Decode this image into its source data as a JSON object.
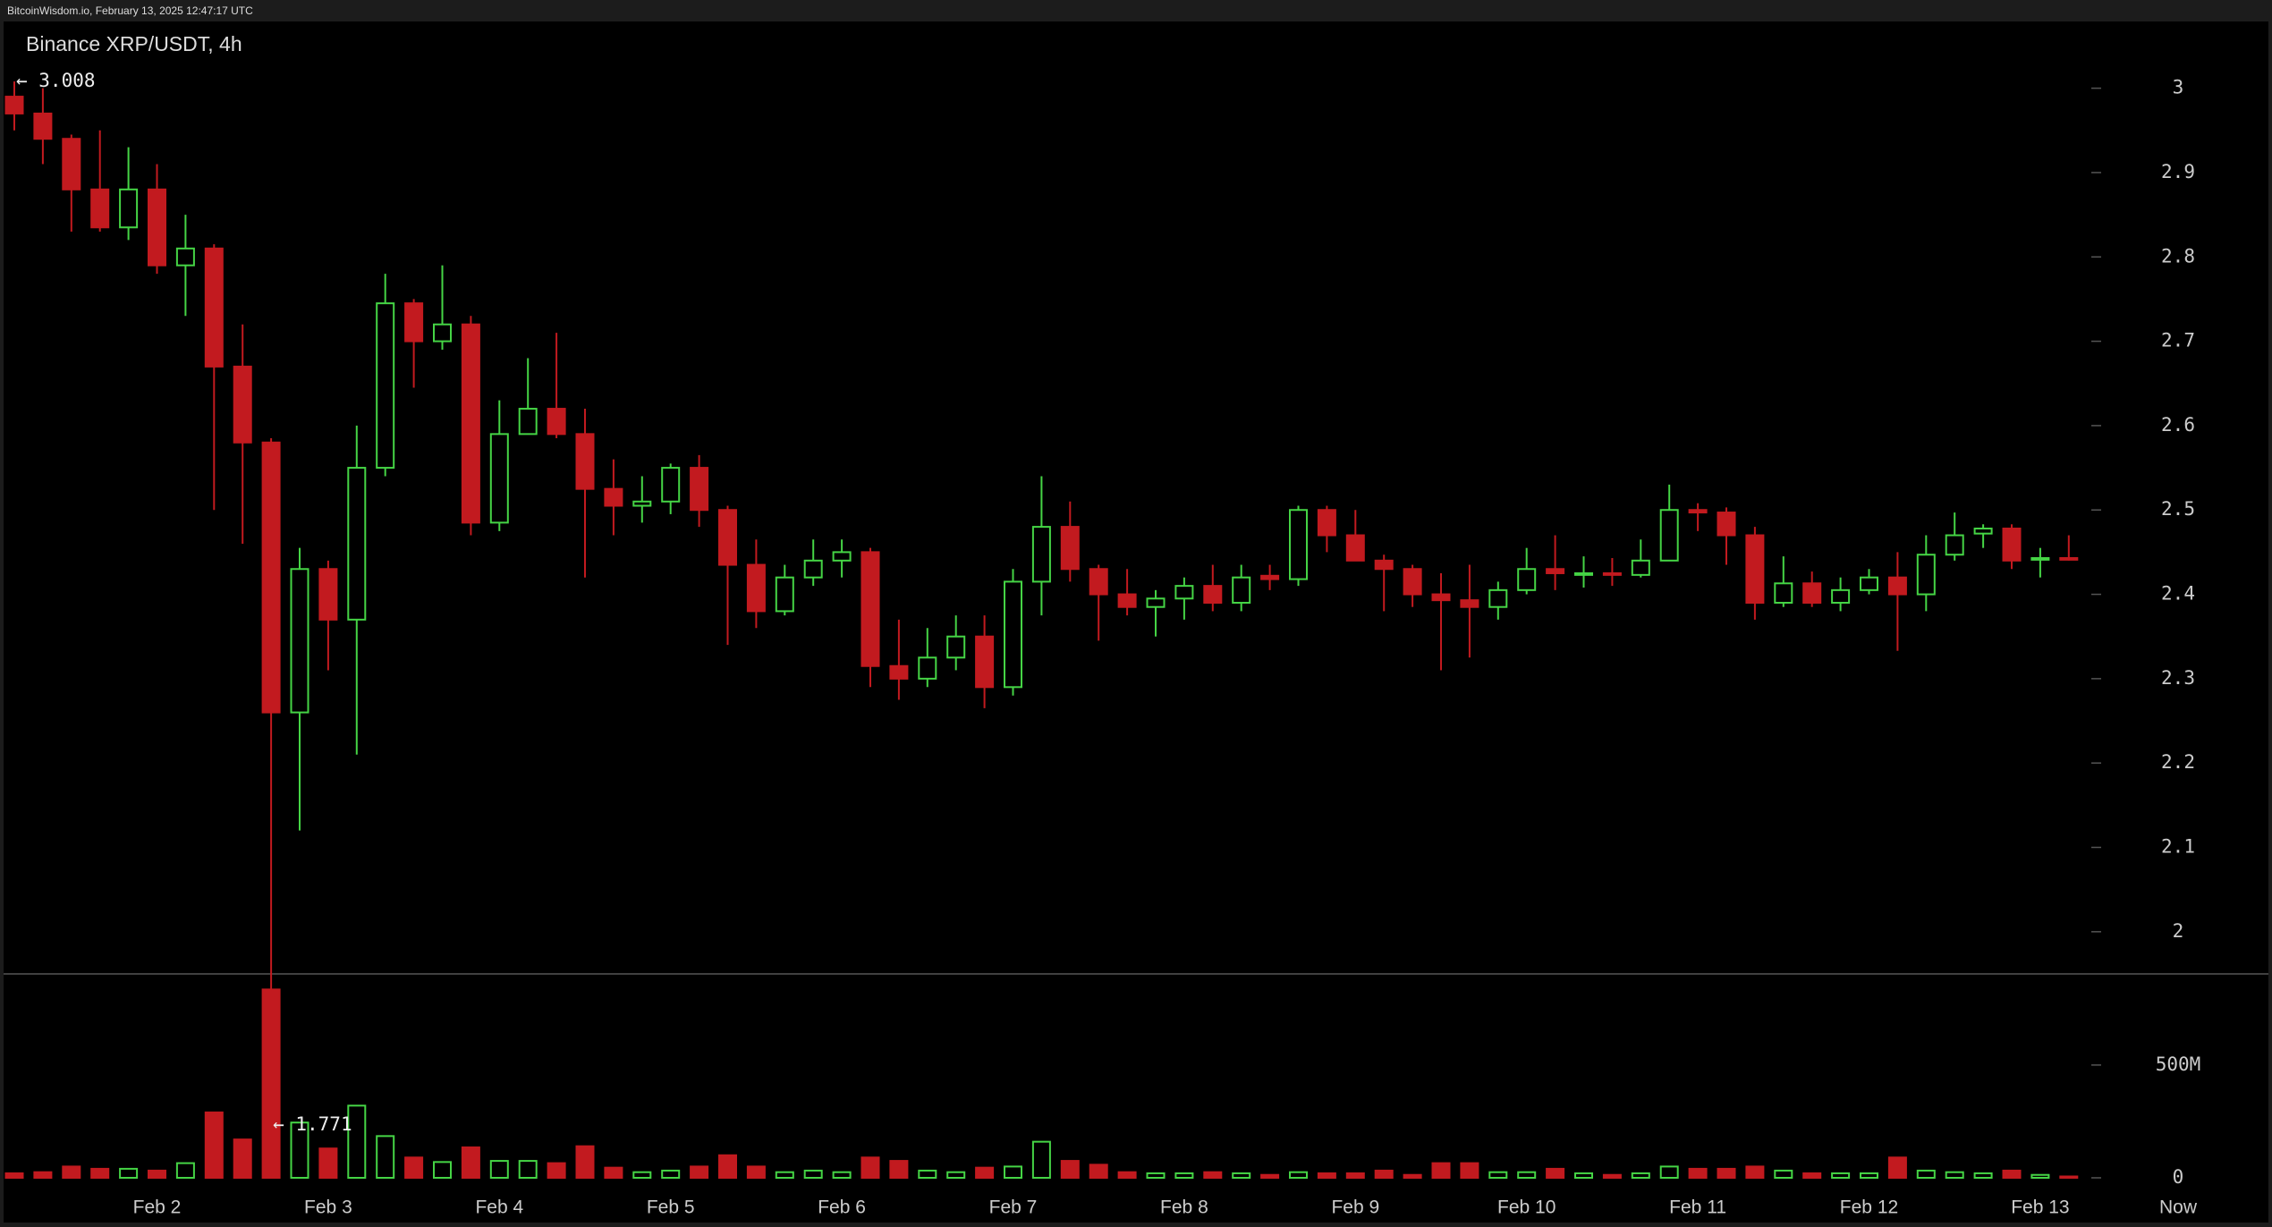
{
  "chart_data": {
    "type": "candlestick",
    "source": "BitcoinWisdom.io, February 13, 2025 12:47:17 UTC",
    "title": "Binance XRP/USDT, 4h",
    "categories": [
      null,
      null,
      null,
      null,
      null,
      "Feb 2",
      null,
      null,
      null,
      null,
      null,
      "Feb 3",
      null,
      null,
      null,
      null,
      null,
      "Feb 4",
      null,
      null,
      null,
      null,
      null,
      "Feb 5",
      null,
      null,
      null,
      null,
      null,
      "Feb 6",
      null,
      null,
      null,
      null,
      null,
      "Feb 7",
      null,
      null,
      null,
      null,
      null,
      "Feb 8",
      null,
      null,
      null,
      null,
      null,
      "Feb 9",
      null,
      null,
      null,
      null,
      null,
      "Feb 10",
      null,
      null,
      null,
      null,
      null,
      "Feb 11",
      null,
      null,
      null,
      null,
      null,
      "Feb 12",
      null,
      null,
      null,
      null,
      null,
      "Feb 13",
      null
    ],
    "now_label": "Now",
    "open": [
      2.99,
      2.97,
      2.94,
      2.88,
      2.835,
      2.88,
      2.79,
      2.81,
      2.67,
      2.58,
      2.26,
      2.43,
      2.37,
      2.55,
      2.745,
      2.7,
      2.72,
      2.485,
      2.59,
      2.62,
      2.59,
      2.525,
      2.505,
      2.51,
      2.55,
      2.5,
      2.435,
      2.38,
      2.42,
      2.44,
      2.45,
      2.315,
      2.3,
      2.325,
      2.35,
      2.29,
      2.415,
      2.48,
      2.43,
      2.4,
      2.385,
      2.395,
      2.41,
      2.39,
      2.422,
      2.418,
      2.5,
      2.47,
      2.44,
      2.43,
      2.4,
      2.393,
      2.385,
      2.405,
      2.43,
      2.423,
      2.425,
      2.423,
      2.44,
      2.5,
      2.497,
      2.47,
      2.39,
      2.413,
      2.39,
      2.405,
      2.42,
      2.4,
      2.447,
      2.472,
      2.478,
      2.441,
      2.443
    ],
    "high": [
      3.008,
      3.0,
      2.945,
      2.95,
      2.93,
      2.91,
      2.85,
      2.815,
      2.72,
      2.585,
      2.455,
      2.44,
      2.6,
      2.78,
      2.75,
      2.79,
      2.73,
      2.63,
      2.68,
      2.71,
      2.62,
      2.56,
      2.54,
      2.555,
      2.565,
      2.505,
      2.465,
      2.435,
      2.465,
      2.465,
      2.455,
      2.37,
      2.36,
      2.375,
      2.375,
      2.43,
      2.54,
      2.51,
      2.435,
      2.43,
      2.405,
      2.42,
      2.435,
      2.435,
      2.435,
      2.505,
      2.505,
      2.5,
      2.447,
      2.435,
      2.425,
      2.435,
      2.415,
      2.455,
      2.47,
      2.445,
      2.443,
      2.465,
      2.53,
      2.508,
      2.503,
      2.48,
      2.445,
      2.427,
      2.42,
      2.43,
      2.45,
      2.47,
      2.497,
      2.483,
      2.483,
      2.455,
      2.47
    ],
    "low": [
      2.95,
      2.91,
      2.83,
      2.83,
      2.82,
      2.78,
      2.73,
      2.5,
      2.46,
      1.771,
      2.12,
      2.31,
      2.21,
      2.54,
      2.645,
      2.69,
      2.47,
      2.475,
      2.59,
      2.585,
      2.42,
      2.47,
      2.485,
      2.495,
      2.48,
      2.34,
      2.36,
      2.375,
      2.41,
      2.42,
      2.29,
      2.275,
      2.29,
      2.31,
      2.265,
      2.28,
      2.375,
      2.415,
      2.345,
      2.375,
      2.35,
      2.37,
      2.38,
      2.38,
      2.405,
      2.41,
      2.45,
      2.44,
      2.38,
      2.385,
      2.31,
      2.325,
      2.37,
      2.4,
      2.405,
      2.408,
      2.41,
      2.42,
      2.44,
      2.475,
      2.435,
      2.37,
      2.385,
      2.385,
      2.38,
      2.4,
      2.333,
      2.38,
      2.44,
      2.455,
      2.43,
      2.42,
      2.44
    ],
    "close": [
      2.97,
      2.94,
      2.88,
      2.835,
      2.88,
      2.79,
      2.81,
      2.67,
      2.58,
      2.26,
      2.43,
      2.37,
      2.55,
      2.745,
      2.7,
      2.72,
      2.485,
      2.59,
      2.62,
      2.59,
      2.525,
      2.505,
      2.51,
      2.55,
      2.5,
      2.435,
      2.38,
      2.42,
      2.44,
      2.45,
      2.315,
      2.3,
      2.325,
      2.35,
      2.29,
      2.415,
      2.48,
      2.43,
      2.4,
      2.385,
      2.395,
      2.41,
      2.39,
      2.42,
      2.418,
      2.5,
      2.47,
      2.44,
      2.43,
      2.4,
      2.393,
      2.385,
      2.405,
      2.43,
      2.425,
      2.425,
      2.423,
      2.44,
      2.5,
      2.497,
      2.47,
      2.39,
      2.413,
      2.39,
      2.405,
      2.42,
      2.4,
      2.447,
      2.47,
      2.478,
      2.44,
      2.443,
      2.441
    ],
    "volume": [
      20000000,
      25000000,
      50000000,
      40000000,
      40000000,
      32000000,
      65000000,
      290000000,
      170000000,
      835000000,
      245000000,
      130000000,
      320000000,
      185000000,
      90000000,
      70000000,
      135000000,
      75000000,
      75000000,
      65000000,
      140000000,
      45000000,
      25000000,
      32000000,
      50000000,
      100000000,
      50000000,
      25000000,
      32000000,
      25000000,
      90000000,
      75000000,
      32000000,
      25000000,
      45000000,
      50000000,
      160000000,
      75000000,
      58000000,
      25000000,
      20000000,
      20000000,
      25000000,
      20000000,
      13000000,
      25000000,
      20000000,
      20000000,
      32000000,
      13000000,
      65000000,
      65000000,
      25000000,
      25000000,
      40000000,
      20000000,
      13000000,
      20000000,
      50000000,
      40000000,
      40000000,
      50000000,
      32000000,
      20000000,
      20000000,
      20000000,
      90000000,
      32000000,
      25000000,
      20000000,
      32000000,
      13000000,
      6000000
    ],
    "up_color": "#45d445",
    "down_color": "#c21a1f",
    "ylim": [
      1.95,
      3.077
    ],
    "yticks": [
      2,
      2.1,
      2.2,
      2.3,
      2.4,
      2.5,
      2.6,
      2.7,
      2.8,
      2.9,
      3
    ],
    "volume_lim": [
      0,
      904000000
    ],
    "volume_ticks": [
      0,
      {
        "value": 500000000,
        "label": "500M"
      }
    ],
    "annotations": [
      {
        "value": 3.008,
        "label": "← 3.008"
      },
      {
        "value": 1.771,
        "label": "← 1.771"
      }
    ]
  }
}
